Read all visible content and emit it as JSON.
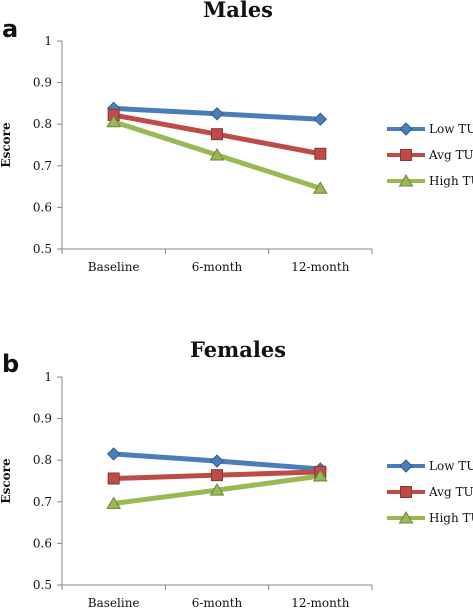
{
  "chart_data": [
    {
      "panel": "a",
      "type": "line",
      "title": "Males",
      "ylabel": "Escore",
      "xlabel": "",
      "categories": [
        "Baseline",
        "6-month",
        "12-month"
      ],
      "ylim": [
        0.5,
        1
      ],
      "yticks": [
        0.5,
        0.6,
        0.7,
        0.8,
        0.9,
        1
      ],
      "ytick_labels": [
        "0.5",
        "0.6",
        "0.7",
        "0.8",
        "0.9",
        "1"
      ],
      "legend_position": "right",
      "grid": false,
      "series": [
        {
          "name": "Low TUG",
          "values": [
            0.838,
            0.825,
            0.812
          ],
          "color": "#4a7ebb",
          "marker": "diamond"
        },
        {
          "name": "Avg TUG",
          "values": [
            0.822,
            0.776,
            0.729
          ],
          "color": "#be4b48",
          "marker": "square"
        },
        {
          "name": "High TUG",
          "values": [
            0.806,
            0.726,
            0.646
          ],
          "color": "#98b954",
          "marker": "triangle"
        }
      ]
    },
    {
      "panel": "b",
      "type": "line",
      "title": "Females",
      "ylabel": "Escore",
      "xlabel": "",
      "categories": [
        "Baseline",
        "6-month",
        "12-month"
      ],
      "ylim": [
        0.5,
        1
      ],
      "yticks": [
        0.5,
        0.6,
        0.7,
        0.8,
        0.9,
        1
      ],
      "ytick_labels": [
        "0.5",
        "0.6",
        "0.7",
        "0.8",
        "0.9",
        "1"
      ],
      "legend_position": "right",
      "grid": false,
      "series": [
        {
          "name": "Low TUG",
          "values": [
            0.815,
            0.798,
            0.779
          ],
          "color": "#4a7ebb",
          "marker": "diamond"
        },
        {
          "name": "Avg TUG",
          "values": [
            0.756,
            0.764,
            0.772
          ],
          "color": "#be4b48",
          "marker": "square"
        },
        {
          "name": "High TUG",
          "values": [
            0.696,
            0.728,
            0.762
          ],
          "color": "#98b954",
          "marker": "triangle"
        }
      ]
    }
  ]
}
